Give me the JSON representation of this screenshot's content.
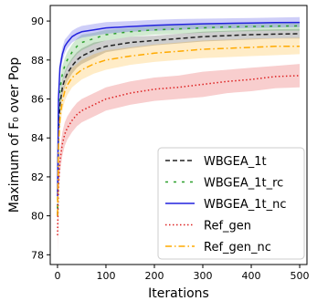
{
  "chart_data": {
    "type": "line",
    "title": "",
    "xlabel": "Iterations",
    "ylabel": "Maximum of F₀ over Pop",
    "xlim": [
      -15,
      515
    ],
    "ylim": [
      77.5,
      90.8
    ],
    "xticks": [
      0,
      100,
      200,
      300,
      400,
      500
    ],
    "yticks": [
      78,
      80,
      82,
      84,
      86,
      88,
      90
    ],
    "grid": false,
    "legend_position": "bottom-right",
    "x": [
      0,
      2,
      5,
      10,
      15,
      20,
      30,
      40,
      50,
      75,
      100,
      150,
      200,
      250,
      300,
      350,
      400,
      450,
      500
    ],
    "series": [
      {
        "name": "WBGEA_1t",
        "color": "#222222",
        "style": "dashed",
        "values": [
          80.0,
          84.2,
          85.7,
          86.6,
          87.0,
          87.3,
          87.7,
          88.0,
          88.2,
          88.5,
          88.7,
          88.9,
          89.0,
          89.1,
          89.2,
          89.25,
          89.3,
          89.33,
          89.35
        ],
        "band_low": [
          79.8,
          83.8,
          85.3,
          86.2,
          86.6,
          86.9,
          87.3,
          87.6,
          87.8,
          88.1,
          88.4,
          88.6,
          88.75,
          88.85,
          88.95,
          89.0,
          89.05,
          89.1,
          89.1
        ],
        "band_high": [
          80.2,
          84.6,
          86.1,
          87.0,
          87.4,
          87.7,
          88.1,
          88.4,
          88.6,
          88.9,
          89.0,
          89.2,
          89.25,
          89.35,
          89.45,
          89.5,
          89.55,
          89.58,
          89.6
        ]
      },
      {
        "name": "WBGEA_1t_rc",
        "color": "#2ca02c",
        "style": "dashed-loose",
        "values": [
          80.4,
          85.0,
          86.5,
          87.3,
          87.7,
          88.0,
          88.4,
          88.7,
          88.9,
          89.1,
          89.3,
          89.45,
          89.55,
          89.6,
          89.65,
          89.7,
          89.72,
          89.74,
          89.75
        ],
        "band_low": [
          80.2,
          84.6,
          86.1,
          86.9,
          87.3,
          87.6,
          88.0,
          88.3,
          88.5,
          88.8,
          89.0,
          89.2,
          89.3,
          89.35,
          89.4,
          89.45,
          89.48,
          89.5,
          89.5
        ],
        "band_high": [
          80.6,
          85.4,
          86.9,
          87.7,
          88.1,
          88.4,
          88.8,
          89.1,
          89.3,
          89.4,
          89.55,
          89.65,
          89.75,
          89.8,
          89.85,
          89.9,
          89.92,
          89.94,
          89.95
        ]
      },
      {
        "name": "WBGEA_1t_nc",
        "color": "#2222dd",
        "style": "solid",
        "values": [
          81.0,
          86.0,
          87.6,
          88.3,
          88.7,
          88.9,
          89.2,
          89.35,
          89.45,
          89.55,
          89.65,
          89.72,
          89.78,
          89.82,
          89.86,
          89.88,
          89.9,
          89.92,
          89.93
        ],
        "band_low": [
          80.8,
          85.6,
          87.2,
          87.95,
          88.35,
          88.6,
          88.9,
          89.05,
          89.15,
          89.25,
          89.35,
          89.45,
          89.5,
          89.55,
          89.6,
          89.62,
          89.65,
          89.66,
          89.68
        ],
        "band_high": [
          81.2,
          86.4,
          88.0,
          88.65,
          89.05,
          89.2,
          89.5,
          89.65,
          89.75,
          89.85,
          89.95,
          90.0,
          90.06,
          90.1,
          90.12,
          90.14,
          90.16,
          90.18,
          90.2
        ]
      },
      {
        "name": "Ref_gen",
        "color": "#dd2222",
        "style": "dotted",
        "values": [
          79.0,
          81.5,
          82.8,
          83.7,
          84.2,
          84.5,
          84.9,
          85.2,
          85.4,
          85.7,
          86.0,
          86.3,
          86.5,
          86.6,
          86.75,
          86.9,
          87.0,
          87.15,
          87.2
        ],
        "band_low": [
          78.0,
          80.9,
          82.2,
          83.1,
          83.6,
          83.9,
          84.3,
          84.6,
          84.8,
          85.1,
          85.4,
          85.7,
          85.9,
          86.0,
          86.1,
          86.3,
          86.4,
          86.55,
          86.6
        ],
        "band_high": [
          80.0,
          82.1,
          83.4,
          84.3,
          84.8,
          85.1,
          85.5,
          85.8,
          86.0,
          86.3,
          86.6,
          86.9,
          87.1,
          87.2,
          87.4,
          87.5,
          87.6,
          87.7,
          87.8
        ]
      },
      {
        "name": "Ref_gen_nc",
        "color": "#ffaa00",
        "style": "dashdot",
        "values": [
          80.0,
          83.5,
          85.0,
          85.9,
          86.4,
          86.7,
          87.1,
          87.3,
          87.5,
          87.8,
          88.0,
          88.2,
          88.35,
          88.45,
          88.55,
          88.6,
          88.65,
          88.7,
          88.7
        ],
        "band_low": [
          79.7,
          83.0,
          84.5,
          85.4,
          85.9,
          86.2,
          86.6,
          86.8,
          87.0,
          87.3,
          87.5,
          87.75,
          87.9,
          88.0,
          88.1,
          88.15,
          88.2,
          88.25,
          88.3
        ],
        "band_high": [
          80.3,
          84.0,
          85.5,
          86.4,
          86.9,
          87.2,
          87.6,
          87.8,
          88.0,
          88.3,
          88.5,
          88.65,
          88.8,
          88.9,
          89.0,
          89.05,
          89.1,
          89.12,
          89.15
        ]
      }
    ]
  }
}
